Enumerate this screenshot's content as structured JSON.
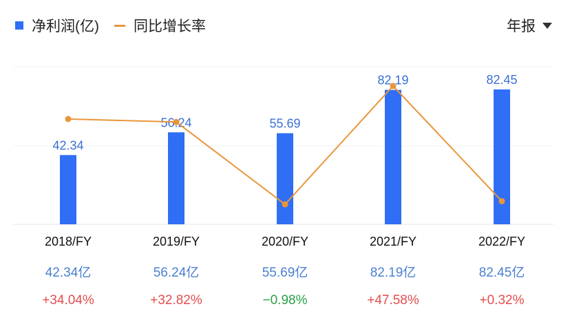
{
  "legend": {
    "bar_label": "净利润(亿)",
    "line_label": "同比增长率",
    "bar_color": "#2f6ef5",
    "line_color": "#e8963a"
  },
  "period_selector": {
    "label": "年报",
    "icon": "caret-down-icon"
  },
  "colors": {
    "positive": "#e34d4d",
    "negative": "#2aa148",
    "value_text": "#4a7fd1",
    "bar_label_text": "#3b6fd6"
  },
  "chart_data": {
    "type": "bar",
    "categories": [
      "2018/FY",
      "2019/FY",
      "2020/FY",
      "2021/FY",
      "2022/FY"
    ],
    "series": [
      {
        "name": "净利润(亿)",
        "type": "bar",
        "values": [
          42.34,
          56.24,
          55.69,
          82.19,
          82.45
        ]
      },
      {
        "name": "同比增长率",
        "type": "line",
        "values": [
          34.04,
          32.82,
          -0.98,
          47.58,
          0.32
        ]
      }
    ],
    "bar_labels": [
      "42.34",
      "56.24",
      "55.69",
      "82.19",
      "82.45"
    ],
    "value_row": [
      "42.34亿",
      "56.24亿",
      "55.69亿",
      "82.19亿",
      "82.45亿"
    ],
    "growth_row": [
      "+34.04%",
      "+32.82%",
      "−0.98%",
      "+47.58%",
      "+0.32%"
    ],
    "grid": true,
    "legend_position": "top-left"
  }
}
